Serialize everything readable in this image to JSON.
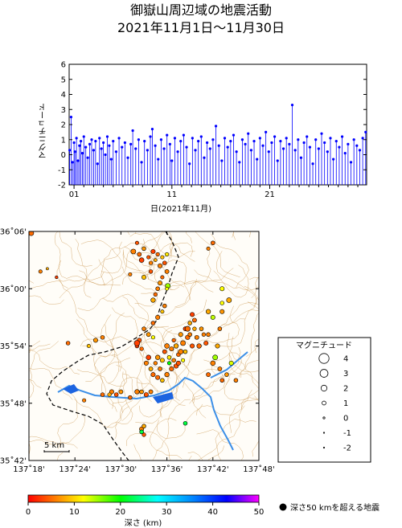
{
  "title_line1": "御嶽山周辺域の地震活動",
  "title_line2": "2021年11月1日～11月30日",
  "chart_data": [
    {
      "type": "bar",
      "ylabel": "マグニチュード",
      "xlabel": "日(2021年11月)",
      "ylim": [
        -2,
        6
      ],
      "yticks": [
        -2,
        -1,
        0,
        1,
        2,
        3,
        4,
        5,
        6
      ],
      "xlim": [
        0.5,
        30.9
      ],
      "xticks": [
        {
          "value": 1,
          "label": "01"
        },
        {
          "value": 11,
          "label": "11"
        },
        {
          "value": 21,
          "label": "21"
        }
      ],
      "color": "#0000ff",
      "events": [
        [
          0.55,
          0.3
        ],
        [
          0.7,
          2.5
        ],
        [
          0.85,
          -0.5
        ],
        [
          1.0,
          0.8
        ],
        [
          1.1,
          0.2
        ],
        [
          1.25,
          1.1
        ],
        [
          1.4,
          -0.4
        ],
        [
          1.55,
          0.6
        ],
        [
          1.7,
          0.9
        ],
        [
          1.85,
          0.1
        ],
        [
          2.0,
          1.2
        ],
        [
          2.2,
          0.5
        ],
        [
          2.4,
          -0.2
        ],
        [
          2.6,
          0.7
        ],
        [
          2.8,
          1.0
        ],
        [
          3.0,
          0.3
        ],
        [
          3.2,
          0.9
        ],
        [
          3.4,
          -0.6
        ],
        [
          3.6,
          1.1
        ],
        [
          3.8,
          0.4
        ],
        [
          4.0,
          0.8
        ],
        [
          4.2,
          0.0
        ],
        [
          4.4,
          1.2
        ],
        [
          4.6,
          0.6
        ],
        [
          4.8,
          -0.3
        ],
        [
          5.0,
          0.9
        ],
        [
          5.3,
          0.2
        ],
        [
          5.6,
          1.1
        ],
        [
          5.9,
          0.5
        ],
        [
          6.2,
          0.8
        ],
        [
          6.5,
          -0.2
        ],
        [
          6.8,
          0.7
        ],
        [
          7.0,
          1.6
        ],
        [
          7.3,
          0.4
        ],
        [
          7.6,
          1.0
        ],
        [
          7.9,
          -0.5
        ],
        [
          8.2,
          0.9
        ],
        [
          8.5,
          0.3
        ],
        [
          8.8,
          1.2
        ],
        [
          9.0,
          1.7
        ],
        [
          9.3,
          0.6
        ],
        [
          9.6,
          -0.3
        ],
        [
          9.9,
          1.0
        ],
        [
          10.2,
          0.4
        ],
        [
          10.5,
          1.3
        ],
        [
          10.8,
          0.7
        ],
        [
          11.0,
          -0.4
        ],
        [
          11.3,
          1.1
        ],
        [
          11.6,
          0.2
        ],
        [
          11.9,
          0.9
        ],
        [
          12.2,
          1.3
        ],
        [
          12.5,
          0.5
        ],
        [
          12.8,
          -0.6
        ],
        [
          13.1,
          1.1
        ],
        [
          13.4,
          0.3
        ],
        [
          13.7,
          0.9
        ],
        [
          14.0,
          1.2
        ],
        [
          14.3,
          -0.2
        ],
        [
          14.6,
          0.8
        ],
        [
          14.9,
          0.4
        ],
        [
          15.2,
          1.0
        ],
        [
          15.5,
          1.9
        ],
        [
          15.8,
          0.6
        ],
        [
          16.1,
          -0.4
        ],
        [
          16.4,
          1.1
        ],
        [
          16.7,
          0.5
        ],
        [
          17.0,
          0.9
        ],
        [
          17.3,
          1.3
        ],
        [
          17.6,
          0.2
        ],
        [
          17.9,
          -0.5
        ],
        [
          18.2,
          1.0
        ],
        [
          18.5,
          0.7
        ],
        [
          18.8,
          1.4
        ],
        [
          19.1,
          0.3
        ],
        [
          19.4,
          0.9
        ],
        [
          19.7,
          -0.3
        ],
        [
          20.0,
          1.1
        ],
        [
          20.3,
          0.6
        ],
        [
          20.6,
          1.5
        ],
        [
          20.9,
          0.2
        ],
        [
          21.2,
          0.8
        ],
        [
          21.5,
          1.2
        ],
        [
          21.8,
          -0.4
        ],
        [
          22.1,
          0.9
        ],
        [
          22.4,
          0.4
        ],
        [
          22.7,
          1.1
        ],
        [
          23.0,
          0.7
        ],
        [
          23.3,
          3.3
        ],
        [
          23.6,
          0.3
        ],
        [
          23.9,
          1.0
        ],
        [
          24.2,
          -0.2
        ],
        [
          24.5,
          0.8
        ],
        [
          24.8,
          1.2
        ],
        [
          25.1,
          0.5
        ],
        [
          25.4,
          -0.6
        ],
        [
          25.7,
          1.0
        ],
        [
          26.0,
          0.4
        ],
        [
          26.3,
          1.4
        ],
        [
          26.6,
          0.8
        ],
        [
          26.9,
          0.2
        ],
        [
          27.2,
          1.1
        ],
        [
          27.5,
          -0.3
        ],
        [
          27.8,
          0.9
        ],
        [
          28.1,
          0.5
        ],
        [
          28.4,
          1.2
        ],
        [
          28.7,
          0.1
        ],
        [
          29.0,
          0.7
        ],
        [
          29.3,
          -0.5
        ],
        [
          29.6,
          1.0
        ],
        [
          29.9,
          0.6
        ],
        [
          30.2,
          0.3
        ],
        [
          30.5,
          1.1
        ],
        [
          30.8,
          1.5
        ]
      ]
    },
    {
      "type": "scatter",
      "xlim": [
        137.3,
        137.8
      ],
      "ylim": [
        35.7,
        36.1
      ],
      "xtick_labels": [
        "137˚18'",
        "137˚24'",
        "137˚30'",
        "137˚36'",
        "137˚42'",
        "137˚48'"
      ],
      "ytick_labels": [
        "35˚42'",
        "35˚48'",
        "35˚54'",
        "36˚00'",
        "36˚06'"
      ],
      "scale_label": "5 km",
      "colorbar": {
        "min": 0,
        "max": 50,
        "ticks": [
          "0",
          "10",
          "20",
          "30",
          "40",
          "50"
        ],
        "label": "深さ (km)"
      },
      "deep_marker_label": "深さ50 kmを超える地震",
      "magnitude_legend": {
        "title": "マグニチュード",
        "values": [
          "4",
          "3",
          "2",
          "1",
          "0",
          "-1",
          "-2"
        ]
      },
      "points": [
        [
          137.305,
          36.097,
          1.5,
          5
        ],
        [
          137.36,
          36.02,
          0.5,
          3
        ],
        [
          137.325,
          36.03,
          0.8,
          6
        ],
        [
          137.34,
          36.035,
          0.3,
          8
        ],
        [
          137.527,
          36.065,
          1.5,
          6
        ],
        [
          137.535,
          36.08,
          0.8,
          4
        ],
        [
          137.54,
          36.06,
          1.1,
          5
        ],
        [
          137.545,
          36.05,
          1.4,
          3
        ],
        [
          137.55,
          36.07,
          1.0,
          7
        ],
        [
          137.56,
          36.055,
          0.8,
          4
        ],
        [
          137.565,
          36.045,
          0.9,
          6
        ],
        [
          137.57,
          36.065,
          1.2,
          3
        ],
        [
          137.575,
          36.05,
          0.7,
          8
        ],
        [
          137.58,
          36.06,
          0.9,
          5
        ],
        [
          137.585,
          36.04,
          1.2,
          6
        ],
        [
          137.59,
          36.055,
          0.8,
          9
        ],
        [
          137.595,
          36.045,
          1.0,
          4
        ],
        [
          137.6,
          36.06,
          0.9,
          11
        ],
        [
          137.6,
          36.03,
          1.1,
          6
        ],
        [
          137.59,
          36.02,
          0.8,
          5
        ],
        [
          137.585,
          36.01,
          1.2,
          7
        ],
        [
          137.58,
          36.0,
          1.0,
          6
        ],
        [
          137.575,
          35.99,
          0.9,
          5
        ],
        [
          137.57,
          35.98,
          1.3,
          8
        ],
        [
          137.565,
          36.03,
          0.9,
          4
        ],
        [
          137.55,
          36.02,
          1.2,
          9
        ],
        [
          137.52,
          36.025,
          0.8,
          6
        ],
        [
          137.602,
          36.005,
          1.5,
          15
        ],
        [
          137.6,
          36.0,
          0.7,
          12
        ],
        [
          137.595,
          35.97,
          1.0,
          6
        ],
        [
          137.59,
          35.96,
          0.8,
          9
        ],
        [
          137.58,
          35.95,
          1.2,
          6
        ],
        [
          137.57,
          35.94,
          1.0,
          5
        ],
        [
          137.56,
          35.92,
          1.1,
          7
        ],
        [
          137.55,
          35.93,
          1.0,
          6
        ],
        [
          137.54,
          35.91,
          1.2,
          4
        ],
        [
          137.535,
          35.9,
          1.0,
          3
        ],
        [
          137.545,
          35.895,
          0.9,
          5
        ],
        [
          137.57,
          35.915,
          0.8,
          12
        ],
        [
          137.56,
          35.88,
          1.4,
          3
        ],
        [
          137.555,
          35.87,
          1.2,
          6
        ],
        [
          137.565,
          35.86,
          1.1,
          8
        ],
        [
          137.57,
          35.85,
          1.2,
          5
        ],
        [
          137.575,
          35.87,
          0.9,
          6
        ],
        [
          137.58,
          35.88,
          1.3,
          7
        ],
        [
          137.585,
          35.86,
          1.0,
          6
        ],
        [
          137.59,
          35.875,
          1.2,
          9
        ],
        [
          137.595,
          35.89,
          1.1,
          4
        ],
        [
          137.6,
          35.9,
          1.4,
          6
        ],
        [
          137.605,
          35.88,
          1.0,
          11
        ],
        [
          137.61,
          35.895,
          1.2,
          6
        ],
        [
          137.615,
          35.91,
          0.9,
          5
        ],
        [
          137.62,
          35.9,
          1.3,
          8
        ],
        [
          137.625,
          35.885,
          1.0,
          5
        ],
        [
          137.63,
          35.92,
          1.2,
          7
        ],
        [
          137.635,
          35.905,
          1.5,
          6
        ],
        [
          137.64,
          35.93,
          1.1,
          3
        ],
        [
          137.645,
          35.915,
          1.3,
          5
        ],
        [
          137.65,
          35.92,
          1.0,
          6
        ],
        [
          137.655,
          35.9,
          1.2,
          4
        ],
        [
          137.66,
          35.93,
          0.9,
          8
        ],
        [
          137.665,
          35.915,
          1.1,
          6
        ],
        [
          137.67,
          35.9,
          1.3,
          5
        ],
        [
          137.675,
          35.93,
          1.0,
          7
        ],
        [
          137.68,
          35.92,
          0.9,
          6
        ],
        [
          137.685,
          35.905,
          1.2,
          4
        ],
        [
          137.69,
          35.92,
          1.0,
          6
        ],
        [
          137.66,
          35.945,
          1.1,
          5
        ],
        [
          137.655,
          35.955,
          1.2,
          3
        ],
        [
          137.65,
          35.94,
          1.0,
          8
        ],
        [
          137.645,
          35.93,
          1.6,
          5
        ],
        [
          137.64,
          35.89,
          1.0,
          9
        ],
        [
          137.635,
          35.875,
          0.8,
          12
        ],
        [
          137.63,
          35.89,
          1.5,
          6
        ],
        [
          137.625,
          35.87,
          1.1,
          7
        ],
        [
          137.62,
          35.865,
          1.3,
          4
        ],
        [
          137.615,
          35.875,
          1.0,
          6
        ],
        [
          137.61,
          35.86,
          1.2,
          5
        ],
        [
          137.605,
          35.87,
          0.8,
          20
        ],
        [
          137.6,
          35.85,
          1.3,
          6
        ],
        [
          137.59,
          35.84,
          1.0,
          9
        ],
        [
          137.58,
          35.845,
          1.2,
          5
        ],
        [
          137.565,
          35.82,
          1.1,
          6
        ],
        [
          137.555,
          35.815,
          1.2,
          4
        ],
        [
          137.545,
          35.82,
          1.0,
          7
        ],
        [
          137.535,
          35.82,
          1.3,
          6
        ],
        [
          137.52,
          35.81,
          1.0,
          5
        ],
        [
          137.5,
          35.82,
          1.1,
          7
        ],
        [
          137.49,
          35.815,
          1.0,
          4
        ],
        [
          137.48,
          35.82,
          1.2,
          6
        ],
        [
          137.475,
          35.815,
          0.9,
          8
        ],
        [
          137.46,
          35.815,
          1.0,
          5
        ],
        [
          137.42,
          35.805,
          0.8,
          6
        ],
        [
          137.385,
          35.905,
          1.0,
          5
        ],
        [
          137.43,
          35.9,
          0.8,
          9
        ],
        [
          137.445,
          35.91,
          1.2,
          7
        ],
        [
          137.46,
          35.915,
          1.0,
          6
        ],
        [
          137.535,
          35.905,
          1.8,
          3
        ],
        [
          137.545,
          35.755,
          1.2,
          6
        ],
        [
          137.55,
          35.76,
          1.0,
          8
        ],
        [
          137.55,
          35.745,
          0.9,
          4
        ],
        [
          137.545,
          35.75,
          1.0,
          22
        ],
        [
          137.64,
          35.765,
          1.0,
          22
        ],
        [
          137.625,
          35.87,
          1.2,
          4
        ],
        [
          137.69,
          35.85,
          1.1,
          5
        ],
        [
          137.7,
          35.87,
          1.4,
          6
        ],
        [
          137.705,
          35.88,
          1.5,
          15
        ],
        [
          137.71,
          35.9,
          1.2,
          8
        ],
        [
          137.715,
          35.93,
          1.0,
          6
        ],
        [
          137.7,
          35.95,
          1.2,
          14
        ],
        [
          137.69,
          35.96,
          1.3,
          8
        ],
        [
          137.72,
          35.96,
          1.2,
          7
        ],
        [
          137.72,
          35.975,
          1.0,
          12
        ],
        [
          137.715,
          35.86,
          1.1,
          6
        ],
        [
          137.72,
          35.84,
          1.0,
          5
        ],
        [
          137.73,
          35.85,
          1.0,
          7
        ],
        [
          137.74,
          35.87,
          1.2,
          13
        ],
        [
          137.75,
          35.84,
          1.0,
          6
        ],
        [
          137.69,
          36.07,
          0.8,
          6
        ],
        [
          137.7,
          36.08,
          1.0,
          5
        ],
        [
          137.72,
          36.0,
          1.2,
          12
        ],
        [
          137.735,
          35.98,
          1.5,
          8
        ]
      ]
    }
  ]
}
